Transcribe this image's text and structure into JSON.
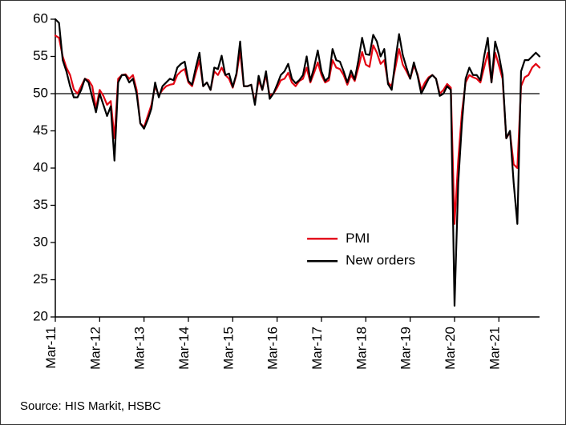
{
  "chart": {
    "type": "line",
    "background_color": "#ffffff",
    "axis_color": "#000000",
    "axis_width": 1.5,
    "ylim": [
      20,
      60
    ],
    "ytick_step": 5,
    "yticks": [
      20,
      25,
      30,
      35,
      40,
      45,
      50,
      55,
      60
    ],
    "tick_fontsize": 17,
    "xtick_labels": [
      "Mar-11",
      "Mar-12",
      "Mar-13",
      "Mar-14",
      "Mar-15",
      "Mar-16",
      "Mar-17",
      "Mar-18",
      "Mar-19",
      "Mar-20",
      "Mar-21"
    ],
    "x_domain_months": 132,
    "baseline_y": 50,
    "baseline_color": "#000000",
    "baseline_width": 1.2,
    "series": [
      {
        "name": "PMI",
        "color": "#e30613",
        "width": 2.2,
        "y": [
          57.8,
          57.5,
          55.0,
          53.5,
          52.5,
          50.6,
          50.0,
          51.0,
          52.0,
          51.8,
          51.0,
          48.0,
          50.5,
          49.7,
          48.5,
          49.0,
          44.0,
          52.0,
          52.5,
          52.6,
          52.0,
          52.5,
          50.5,
          46.0,
          45.5,
          47.0,
          48.5,
          51.0,
          49.8,
          50.5,
          51.0,
          51.2,
          51.3,
          52.5,
          53.0,
          53.3,
          51.5,
          51.0,
          52.8,
          54.5,
          51.0,
          51.5,
          50.5,
          53.0,
          52.5,
          53.5,
          52.5,
          52.0,
          50.8,
          52.5,
          55.7,
          51.0,
          51.0,
          51.2,
          48.8,
          51.8,
          50.5,
          52.5,
          49.7,
          50.0,
          50.8,
          51.8,
          52.0,
          52.8,
          51.5,
          51.0,
          51.7,
          52.0,
          53.5,
          51.5,
          52.8,
          54.2,
          52.5,
          51.5,
          51.8,
          54.5,
          53.5,
          53.3,
          52.5,
          51.2,
          52.5,
          51.7,
          53.5,
          55.6,
          53.9,
          53.6,
          56.5,
          55.5,
          54.0,
          54.5,
          51.5,
          51.0,
          53.5,
          56.0,
          53.9,
          53.0,
          52.0,
          53.8,
          52.6,
          50.5,
          51.5,
          52.2,
          52.5,
          52.0,
          50.0,
          50.5,
          51.3,
          50.8,
          32.5,
          41.0,
          47.5,
          51.5,
          52.5,
          52.2,
          52.0,
          51.5,
          53.5,
          55.5,
          51.5,
          55.5,
          53.8,
          52.0,
          44.0,
          44.8,
          40.5,
          40.0,
          51.0,
          52.2,
          52.5,
          53.5,
          54.0,
          53.5
        ]
      },
      {
        "name": "New orders",
        "color": "#000000",
        "width": 2.2,
        "y": [
          60.0,
          59.5,
          54.5,
          53.0,
          51.0,
          49.5,
          49.5,
          50.5,
          52.0,
          51.5,
          49.5,
          47.5,
          50.0,
          48.5,
          47.0,
          48.3,
          41.0,
          51.5,
          52.5,
          52.5,
          51.5,
          52.0,
          50.0,
          46.0,
          45.3,
          46.5,
          48.0,
          51.5,
          49.5,
          51.0,
          51.5,
          52.0,
          51.8,
          53.5,
          54.0,
          54.3,
          51.7,
          51.2,
          53.5,
          55.5,
          51.0,
          51.5,
          50.5,
          53.5,
          53.3,
          55.1,
          52.5,
          52.7,
          50.9,
          52.7,
          57.0,
          51.0,
          51.0,
          51.2,
          48.5,
          52.4,
          50.5,
          53.0,
          49.3,
          50.0,
          51.2,
          52.5,
          53.0,
          54.0,
          52.0,
          51.4,
          51.8,
          52.5,
          55.0,
          51.7,
          53.5,
          55.8,
          53.0,
          51.7,
          52.2,
          56.0,
          54.5,
          54.3,
          53.0,
          51.5,
          53.1,
          51.9,
          54.5,
          57.5,
          55.3,
          55.2,
          57.9,
          57.0,
          55.0,
          56.0,
          51.3,
          50.5,
          54.5,
          58.0,
          55.2,
          53.5,
          52.0,
          54.2,
          52.4,
          50.0,
          51.0,
          52.0,
          52.5,
          52.0,
          49.7,
          50.0,
          51.0,
          50.5,
          21.5,
          38.0,
          46.0,
          52.0,
          53.5,
          52.5,
          52.5,
          51.8,
          55.0,
          57.5,
          51.5,
          57.0,
          55.2,
          52.5,
          44.0,
          45.0,
          38.0,
          32.5,
          53.0,
          54.5,
          54.5,
          55.0,
          55.5,
          55.0
        ]
      }
    ],
    "legend": {
      "items": [
        {
          "label": "PMI",
          "color": "#e30613"
        },
        {
          "label": "New orders",
          "color": "#000000"
        }
      ],
      "fontsize": 17,
      "line_length": 38
    }
  },
  "source_text": "Source: HIS Markit, HSBC"
}
